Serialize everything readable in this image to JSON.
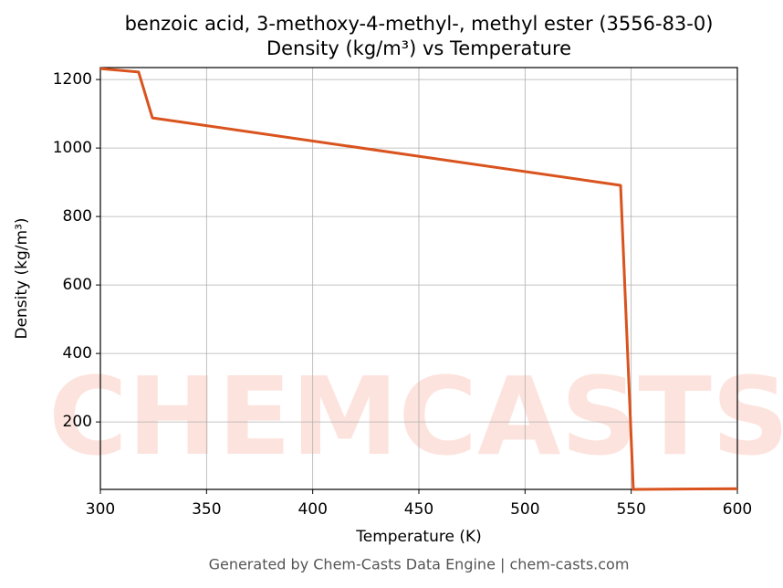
{
  "chart_data": {
    "type": "line",
    "title": "benzoic acid, 3-methoxy-4-methyl-, methyl ester (3556-83-0)",
    "subtitle": "Density (kg/m³) vs Temperature",
    "x_label": "Temperature (K)",
    "y_label": "Density (kg/m³)",
    "watermark": "CHEMCASTS",
    "footer": "Generated by Chem-Casts Data Engine | chem-casts.com",
    "x": [
      300,
      318,
      324.5,
      545,
      551,
      600
    ],
    "series": [
      {
        "name": "Density",
        "color": "#d9531e",
        "values": [
          1232,
          1222,
          1088,
          891,
          3,
          5
        ]
      }
    ],
    "xlim": [
      300,
      600
    ],
    "ylim": [
      3,
      1235
    ],
    "xticks": [
      300,
      350,
      400,
      450,
      500,
      550,
      600
    ],
    "yticks": [
      200,
      400,
      600,
      800,
      1000,
      1200
    ],
    "grid": true
  }
}
